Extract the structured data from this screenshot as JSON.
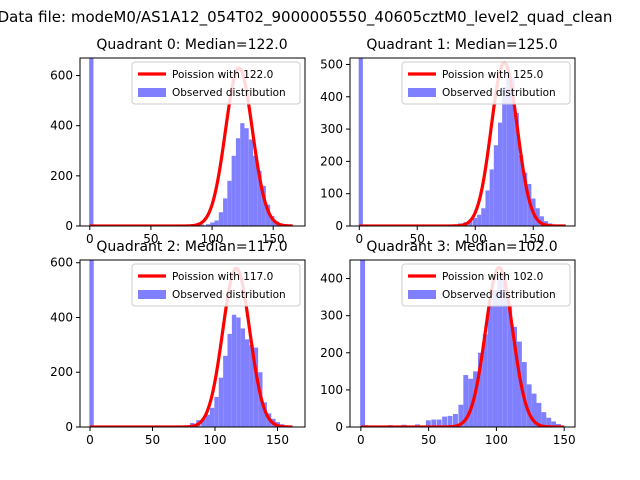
{
  "figure": {
    "suptitle": "Data file: modeM0/AS1A12_054T02_9000005550_40605cztM0_level2_quad_clean"
  },
  "colors": {
    "hist": "#8080ff",
    "fit": "#ff0000",
    "axis": "#000000"
  },
  "chart_data": [
    {
      "type": "bar",
      "title": "Quadrant 0: Median=122.0",
      "xlim": [
        -8,
        176
      ],
      "ylim": [
        0,
        670
      ],
      "xticks": [
        0,
        50,
        100,
        150
      ],
      "yticks": [
        0,
        200,
        400,
        600
      ],
      "legend": {
        "placement": "top-right",
        "entries": [
          "Poission with 122.0",
          "Observed distribution"
        ]
      },
      "series": [
        {
          "name": "Poission with 122.0",
          "mean": 122,
          "peak": 630,
          "sigma": 11.0,
          "x_range": [
            0,
            166
          ]
        },
        {
          "name": "Observed distribution",
          "bin_width": 3.5,
          "bins": [
            [
              -0.5,
              670
            ],
            [
              80,
              2
            ],
            [
              85,
              4
            ],
            [
              90,
              6
            ],
            [
              95,
              7
            ],
            [
              98.5,
              14
            ],
            [
              102,
              22
            ],
            [
              105.5,
              55
            ],
            [
              109,
              110
            ],
            [
              112.5,
              180
            ],
            [
              116,
              280
            ],
            [
              119.5,
              350
            ],
            [
              123,
              410
            ],
            [
              126.5,
              390
            ],
            [
              130,
              345
            ],
            [
              133.5,
              280
            ],
            [
              137,
              220
            ],
            [
              140.5,
              160
            ],
            [
              144,
              85
            ],
            [
              147.5,
              40
            ],
            [
              151,
              18
            ],
            [
              154.5,
              10
            ],
            [
              158,
              6
            ],
            [
              161.5,
              3
            ]
          ]
        }
      ]
    },
    {
      "type": "bar",
      "title": "Quadrant 1: Median=125.0",
      "xlim": [
        -8,
        186
      ],
      "ylim": [
        0,
        520
      ],
      "xticks": [
        0,
        50,
        100,
        150
      ],
      "yticks": [
        0,
        100,
        200,
        300,
        400,
        500
      ],
      "legend": {
        "placement": "top-right",
        "entries": [
          "Poission with 125.0",
          "Observed distribution"
        ]
      },
      "series": [
        {
          "name": "Poission with 125.0",
          "mean": 125,
          "peak": 505,
          "sigma": 11.2,
          "x_range": [
            0,
            178
          ]
        },
        {
          "name": "Observed distribution",
          "bin_width": 3.6,
          "bins": [
            [
              -0.5,
              520
            ],
            [
              75,
              3
            ],
            [
              80,
              5
            ],
            [
              85,
              8
            ],
            [
              90,
              12
            ],
            [
              94,
              18
            ],
            [
              98,
              25
            ],
            [
              101.6,
              35
            ],
            [
              105.2,
              55
            ],
            [
              108.8,
              110
            ],
            [
              112.4,
              175
            ],
            [
              116,
              250
            ],
            [
              119.6,
              320
            ],
            [
              123.2,
              430
            ],
            [
              126.8,
              470
            ],
            [
              130.4,
              460
            ],
            [
              134,
              350
            ],
            [
              137.6,
              220
            ],
            [
              141.2,
              165
            ],
            [
              144.8,
              130
            ],
            [
              148.4,
              85
            ],
            [
              152,
              55
            ],
            [
              155.6,
              30
            ],
            [
              159.2,
              15
            ],
            [
              162.8,
              8
            ],
            [
              166.4,
              4
            ],
            [
              170,
              2
            ]
          ]
        }
      ]
    },
    {
      "type": "bar",
      "title": "Quadrant 2: Median=117.0",
      "xlim": [
        -8,
        172
      ],
      "ylim": [
        0,
        610
      ],
      "xticks": [
        0,
        50,
        100,
        150
      ],
      "yticks": [
        0,
        200,
        400,
        600
      ],
      "legend": {
        "placement": "top-right",
        "entries": [
          "Poission with 117.0",
          "Observed distribution"
        ]
      },
      "series": [
        {
          "name": "Poission with 117.0",
          "mean": 117,
          "peak": 580,
          "sigma": 10.8,
          "x_range": [
            0,
            162
          ]
        },
        {
          "name": "Observed distribution",
          "bin_width": 3.5,
          "bins": [
            [
              -0.5,
              610
            ],
            [
              75,
              5
            ],
            [
              80,
              15
            ],
            [
              85,
              25
            ],
            [
              89,
              30
            ],
            [
              92.5,
              45
            ],
            [
              96,
              70
            ],
            [
              99.5,
              110
            ],
            [
              103,
              180
            ],
            [
              106.5,
              260
            ],
            [
              110,
              340
            ],
            [
              113.5,
              410
            ],
            [
              117,
              400
            ],
            [
              120.5,
              360
            ],
            [
              124,
              320
            ],
            [
              127.5,
              300
            ],
            [
              131,
              290
            ],
            [
              134.5,
              200
            ],
            [
              138,
              90
            ],
            [
              141.5,
              50
            ],
            [
              145,
              30
            ],
            [
              148.5,
              18
            ],
            [
              152,
              10
            ],
            [
              155.5,
              5
            ]
          ]
        }
      ]
    },
    {
      "type": "bar",
      "title": "Quadrant 3: Median=102.0",
      "xlim": [
        -8,
        158
      ],
      "ylim": [
        0,
        450
      ],
      "xticks": [
        0,
        50,
        100,
        150
      ],
      "yticks": [
        0,
        100,
        200,
        300,
        400
      ],
      "legend": {
        "placement": "top-right",
        "entries": [
          "Poission with 102.0",
          "Observed distribution"
        ]
      },
      "series": [
        {
          "name": "Poission with 102.0",
          "mean": 102,
          "peak": 430,
          "sigma": 10.0,
          "x_range": [
            0,
            150
          ]
        },
        {
          "name": "Observed distribution",
          "bin_width": 3.6,
          "bins": [
            [
              -0.5,
              450
            ],
            [
              2,
              5
            ],
            [
              10,
              4
            ],
            [
              20,
              5
            ],
            [
              30,
              6
            ],
            [
              40,
              7
            ],
            [
              48,
              18
            ],
            [
              52,
              20
            ],
            [
              56,
              20
            ],
            [
              60,
              28
            ],
            [
              64,
              30
            ],
            [
              68,
              35
            ],
            [
              72,
              60
            ],
            [
              75.6,
              140
            ],
            [
              79.2,
              130
            ],
            [
              82.8,
              150
            ],
            [
              86.4,
              200
            ],
            [
              90,
              250
            ],
            [
              93.6,
              330
            ],
            [
              97.2,
              370
            ],
            [
              100.8,
              410
            ],
            [
              104.4,
              390
            ],
            [
              108,
              330
            ],
            [
              111.6,
              270
            ],
            [
              115.2,
              230
            ],
            [
              118.8,
              175
            ],
            [
              122.4,
              115
            ],
            [
              126,
              90
            ],
            [
              129.6,
              65
            ],
            [
              133.2,
              40
            ],
            [
              136.8,
              25
            ],
            [
              140.4,
              15
            ],
            [
              144,
              8
            ]
          ]
        }
      ]
    }
  ]
}
